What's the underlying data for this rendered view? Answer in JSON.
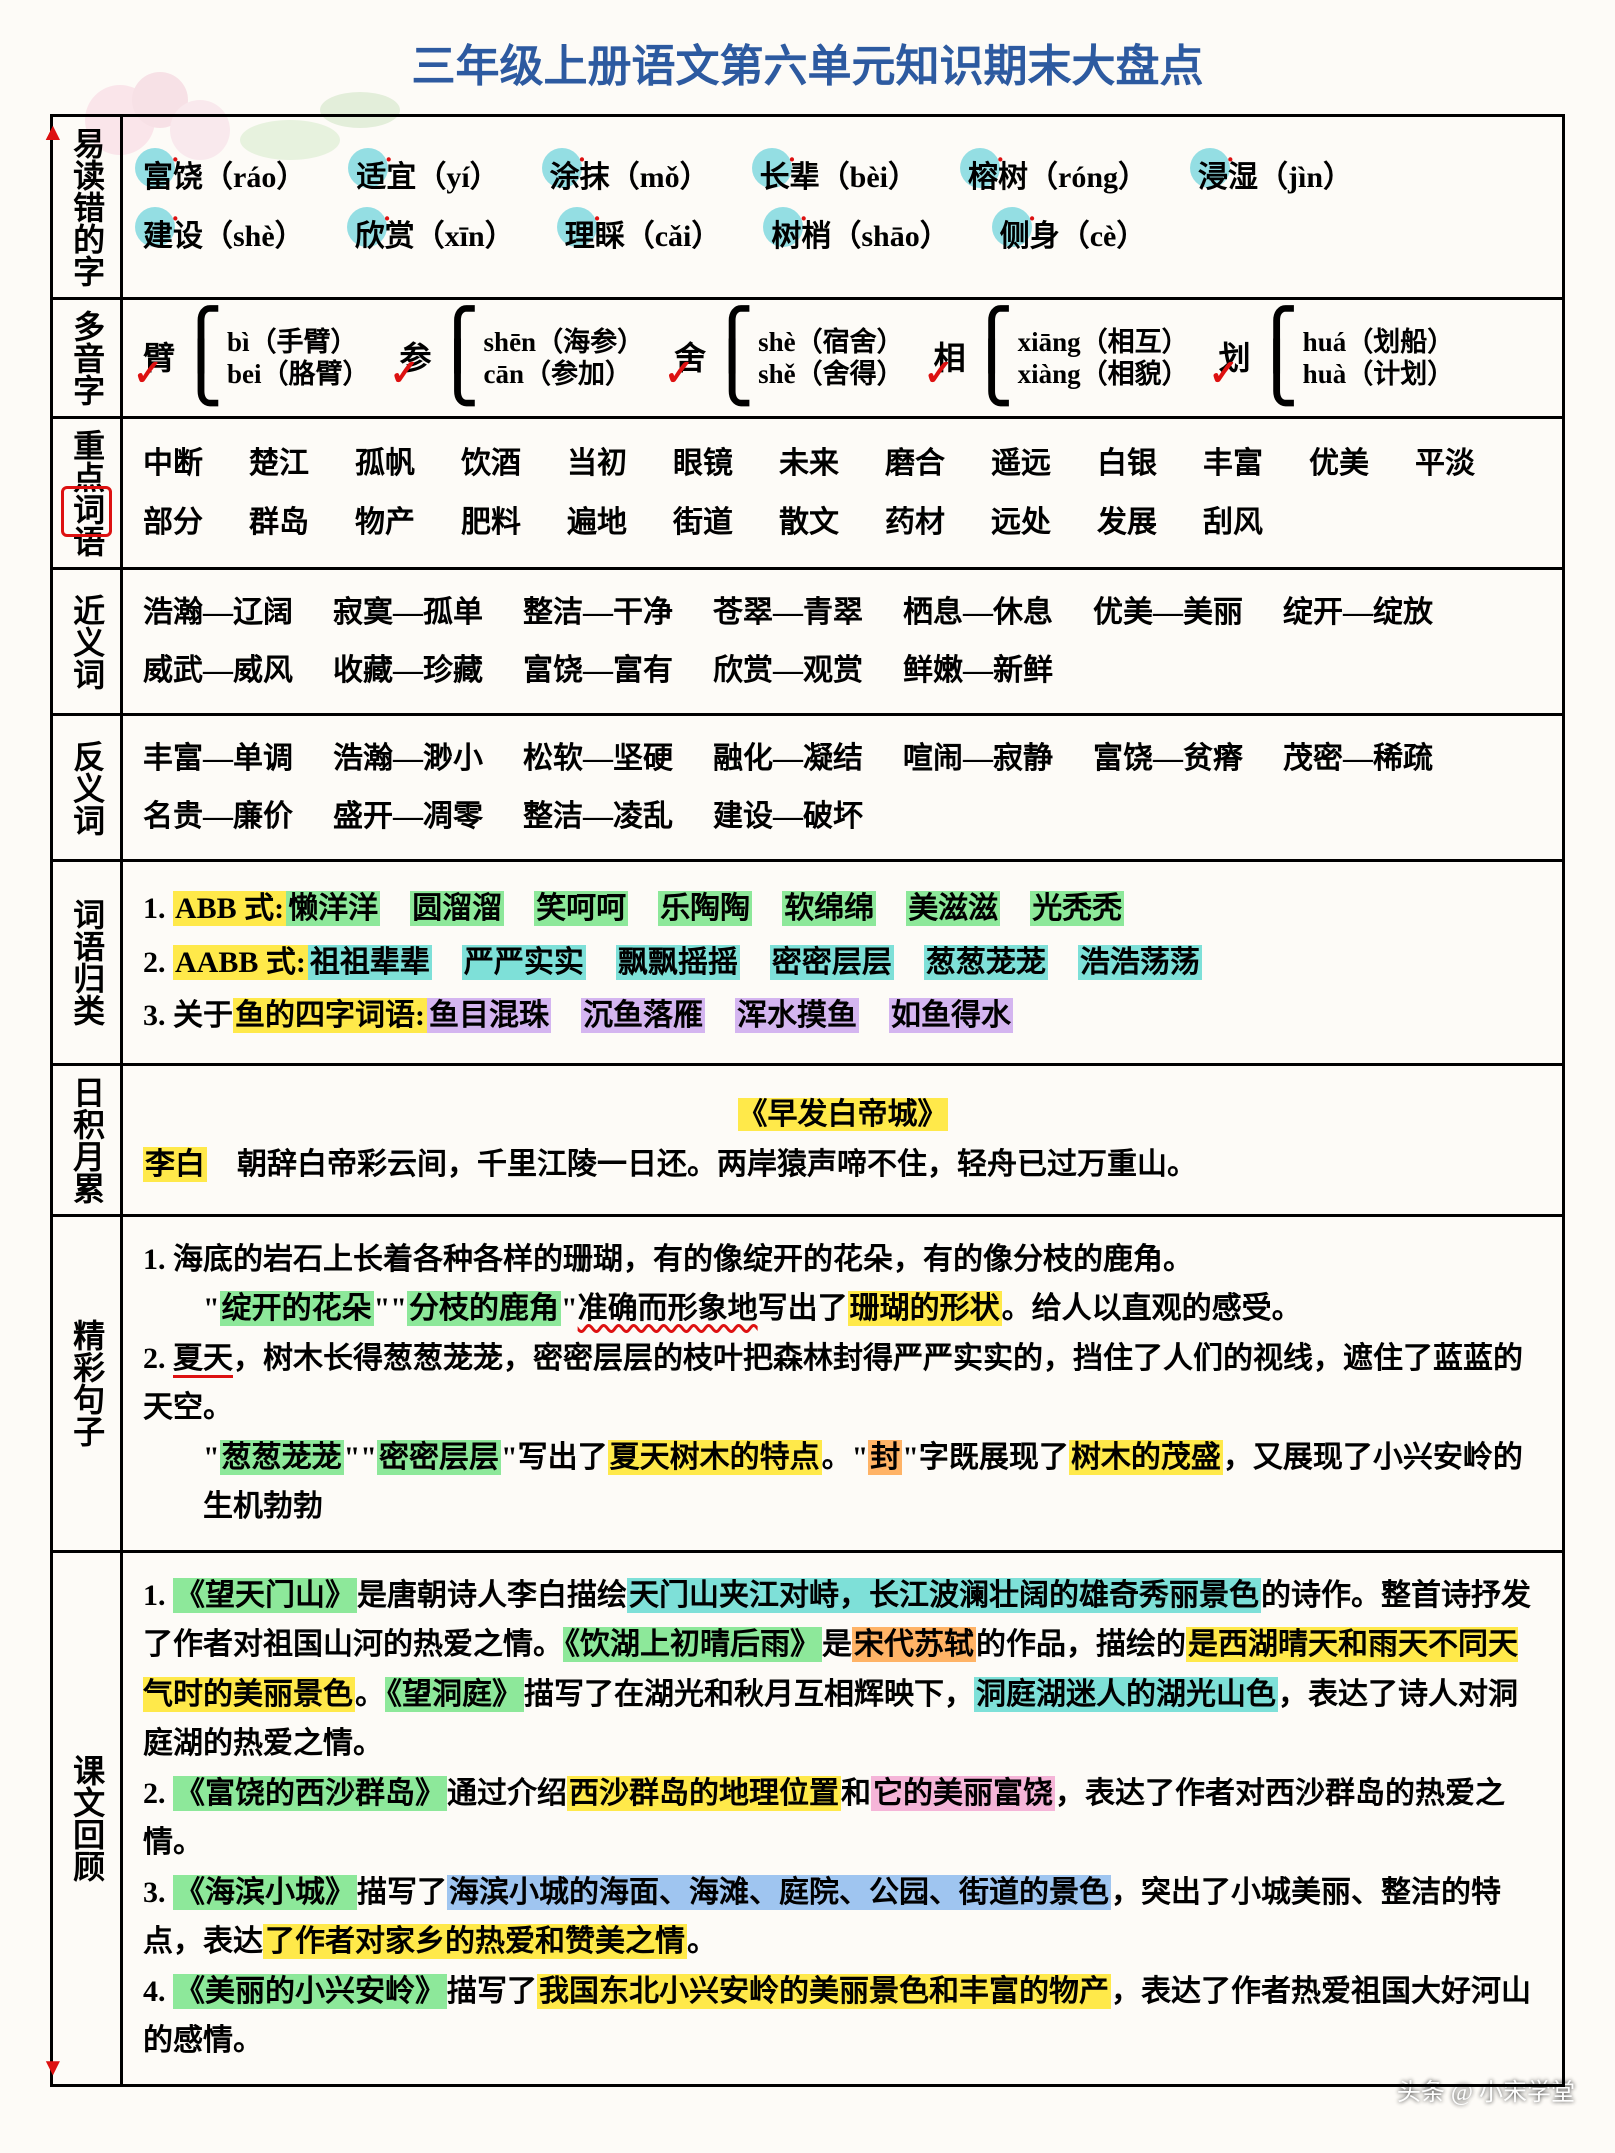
{
  "title": "三年级上册语文第六单元知识期末大盘点",
  "sections": {
    "s1": {
      "label": "易读错的字"
    },
    "s2": {
      "label": "多音字"
    },
    "s3": {
      "label": "重点词语"
    },
    "s4": {
      "label": "近义词"
    },
    "s5": {
      "label": "反义词"
    },
    "s6": {
      "label": "词语归类"
    },
    "s7": {
      "label": "日积月累"
    },
    "s8": {
      "label": "精彩句子"
    },
    "s9": {
      "label": "课文回顾"
    }
  },
  "easy_errors": [
    {
      "w": "富饶",
      "p": "ráo"
    },
    {
      "w": "适宜",
      "p": "yí"
    },
    {
      "w": "涂抹",
      "p": "mǒ"
    },
    {
      "w": "长辈",
      "p": "bèi"
    },
    {
      "w": "榕树",
      "p": "róng"
    },
    {
      "w": "浸湿",
      "p": "jìn"
    },
    {
      "w": "建设",
      "p": "shè"
    },
    {
      "w": "欣赏",
      "p": "xīn"
    },
    {
      "w": "理睬",
      "p": "cǎi"
    },
    {
      "w": "树梢",
      "p": "shāo"
    },
    {
      "w": "侧身",
      "p": "cè"
    }
  ],
  "polyphonic": [
    {
      "c": "臂",
      "r1": "bì（手臂）",
      "r2": "bei（胳臂）"
    },
    {
      "c": "参",
      "r1": "shēn（海参）",
      "r2": "cān（参加）"
    },
    {
      "c": "舍",
      "r1": "shè（宿舍）",
      "r2": "shě（舍得）"
    },
    {
      "c": "相",
      "r1": "xiāng（相互）",
      "r2": "xiàng（相貌）"
    },
    {
      "c": "划",
      "r1": "huá（划船）",
      "r2": "huà（计划）"
    }
  ],
  "key_words": [
    "中断",
    "楚江",
    "孤帆",
    "饮酒",
    "当初",
    "眼镜",
    "未来",
    "磨合",
    "遥远",
    "白银",
    "丰富",
    "优美",
    "平淡",
    "部分",
    "群岛",
    "物产",
    "肥料",
    "遍地",
    "街道",
    "散文",
    "药材",
    "远处",
    "发展",
    "刮风"
  ],
  "synonyms": [
    "浩瀚—辽阔",
    "寂寞—孤单",
    "整洁—干净",
    "苍翠—青翠",
    "栖息—休息",
    "优美—美丽",
    "绽开—绽放",
    "威武—威风",
    "收藏—珍藏",
    "富饶—富有",
    "欣赏—观赏",
    "鲜嫩—新鲜"
  ],
  "antonyms": [
    "丰富—单调",
    "浩瀚—渺小",
    "松软—坚硬",
    "融化—凝结",
    "喧闹—寂静",
    "富饶—贫瘠",
    "茂密—稀疏",
    "名贵—廉价",
    "盛开—凋零",
    "整洁—凌乱",
    "建设—破坏"
  ],
  "patterns": {
    "abb_label": "ABB 式:",
    "abb": [
      "懒洋洋",
      "圆溜溜",
      "笑呵呵",
      "乐陶陶",
      "软绵绵",
      "美滋滋",
      "光秃秃"
    ],
    "aabb_label": "AABB 式:",
    "aabb": [
      "祖祖辈辈",
      "严严实实",
      "飘飘摇摇",
      "密密层层",
      "葱葱茏茏",
      "浩浩荡荡"
    ],
    "fish_label": "关于鱼的四字词语:",
    "fish": [
      "鱼目混珠",
      "沉鱼落雁",
      "浑水摸鱼",
      "如鱼得水"
    ]
  },
  "poem": {
    "title": "《早发白帝城》",
    "author": "李白",
    "text": "朝辞白帝彩云间，千里江陵一日还。两岸猿声啼不住，轻舟已过万重山。"
  },
  "sentences": {
    "s1a": "海底的岩石上长着各种各样的珊瑚，有的像绽开的花朵，有的像分枝的鹿角。",
    "s1b_pre": "\"",
    "s1b_h1": "绽开的花朵",
    "s1b_mid1": "\"\"",
    "s1b_h2": "分枝的鹿角",
    "s1b_mid2": "\"",
    "s1b_wavy": "准确而形象地",
    "s1b_post1": "写出了",
    "s1b_h3": "珊瑚的形状",
    "s1b_post2": "。给人以直观的感受。",
    "s2a": "夏天，树木长得葱葱茏茏，密密层层的枝叶把森林封得严严实实的，挡住了人们的视线，遮住了蓝蓝的天空。",
    "s2b_pre": "\"",
    "s2b_h1": "葱葱茏茏",
    "s2b_mid1": "\"\"",
    "s2b_h2": "密密层层",
    "s2b_mid2": "\"写出了",
    "s2b_h3": "夏天树木的特点",
    "s2b_mid3": "。\"",
    "s2b_h4": "封",
    "s2b_mid4": "\"字既展现了",
    "s2b_h5": "树木的茂盛",
    "s2b_post": "，又展现了小兴安岭的生机勃勃"
  },
  "review": {
    "r1": {
      "t1": "《望天门山》",
      "p1": "是唐朝诗人李白描绘",
      "h1": "天门山夹江对峙，长江波澜壮阔的雄奇秀丽景色",
      "p2": "的诗作。整首诗抒发了作者对祖国山河的热爱之情。",
      "t2": "《饮湖上初晴后雨》",
      "p3": "是",
      "h2": "宋代苏轼",
      "p4": "的作品，描绘的",
      "h3": "是西湖晴天和雨天不同天气时的美丽景色",
      "p5": "。",
      "t3": "《望洞庭》",
      "p6": "描写了在湖光和秋月互相辉映下，",
      "h4": "洞庭湖迷人的湖光山色",
      "p7": "，表达了诗人对洞庭湖的热爱之情。"
    },
    "r2": {
      "t": "《富饶的西沙群岛》",
      "p1": "通过介绍",
      "h1": "西沙群岛的地理位置",
      "p2": "和",
      "h2": "它的美丽富饶",
      "p3": "，表达了作者对西沙群岛的热爱之情。"
    },
    "r3": {
      "t": "《海滨小城》",
      "p1": "描写了",
      "h1": "海滨小城的海面、海滩、庭院、公园、街道的景色",
      "p2": "，突出了小城美丽、整洁的特点，表达",
      "h2": "了作者对家乡的热爱和赞美之情",
      "p3": "。"
    },
    "r4": {
      "t": "《美丽的小兴安岭》",
      "p1": "描写了",
      "h1": "我国东北小兴安岭的美丽景色和丰富的物产",
      "p2": "，表达了作者热爱祖国大好河山的感情。"
    }
  },
  "footer": "头条 @ 小宋学堂"
}
